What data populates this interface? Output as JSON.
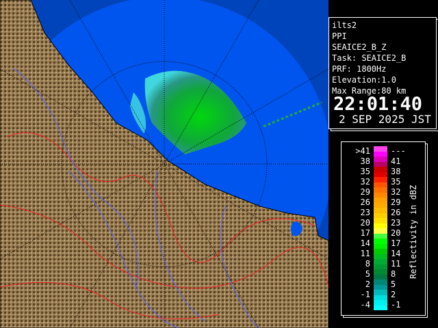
{
  "info": {
    "radar": "ilts2",
    "mode": "PPI",
    "product": "SEAICE2_B_Z",
    "task": "Task: SEAICE2_B",
    "prf": "PRF: 1800Hz",
    "elevation": "Elevation:1.0",
    "max_range": "Max Range:80 km",
    "time": "22:01:40",
    "date": "2 SEP 2025 JST"
  },
  "legend": {
    "unit": "Reflectivity in dBZ",
    "rows": [
      {
        "left": ">41",
        "right": "---",
        "colors": [
          "#ff44ee",
          "#ff00ff"
        ]
      },
      {
        "left": "38",
        "right": "41",
        "colors": [
          "#dd00bb",
          "#bb0066"
        ]
      },
      {
        "left": "35",
        "right": "38",
        "colors": [
          "#cc0000",
          "#e00000"
        ]
      },
      {
        "left": "32",
        "right": "35",
        "colors": [
          "#ff2200",
          "#ff5500"
        ]
      },
      {
        "left": "29",
        "right": "32",
        "colors": [
          "#ff7000",
          "#ff8800"
        ]
      },
      {
        "left": "26",
        "right": "29",
        "colors": [
          "#ffa000",
          "#ffaa00"
        ]
      },
      {
        "left": "23",
        "right": "26",
        "colors": [
          "#ffbb00",
          "#ffcc00"
        ]
      },
      {
        "left": "20",
        "right": "23",
        "colors": [
          "#ffe000",
          "#ffff00"
        ]
      },
      {
        "left": "17",
        "right": "20",
        "colors": [
          "#ffff44",
          "#44ff44"
        ]
      },
      {
        "left": "14",
        "right": "17",
        "colors": [
          "#00ff00",
          "#00ee00"
        ]
      },
      {
        "left": "11",
        "right": "14",
        "colors": [
          "#00cc00",
          "#00bb22"
        ]
      },
      {
        "left": "8",
        "right": "11",
        "colors": [
          "#00aa33",
          "#009933"
        ]
      },
      {
        "left": "5",
        "right": "8",
        "colors": [
          "#008833",
          "#007744"
        ]
      },
      {
        "left": "2",
        "right": "5",
        "colors": [
          "#008877",
          "#009999"
        ]
      },
      {
        "left": "-1",
        "right": "2",
        "colors": [
          "#00bbbb",
          "#00dddd"
        ]
      },
      {
        "left": "-4",
        "right": "-1",
        "colors": [
          "#00eeee",
          "#00ffff"
        ]
      }
    ]
  },
  "colors": {
    "sea_outer": "#0044bb",
    "sea_inner": "#0055ee",
    "land": "#8a6e45",
    "echo": "#22cc22"
  }
}
